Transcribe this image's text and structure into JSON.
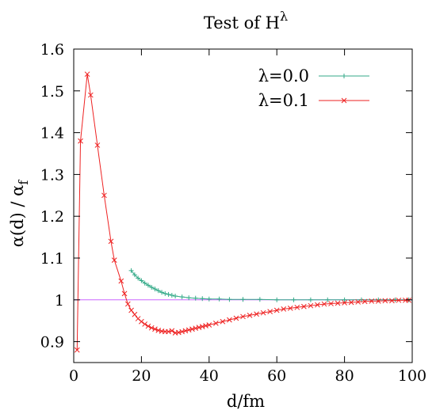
{
  "chart_data": {
    "type": "line",
    "title": "Test of H",
    "title_superscript": "λ",
    "xlabel": "d/fm",
    "ylabel": "α(d) / α",
    "ylabel_subscript": "f",
    "xlim": [
      0,
      100
    ],
    "ylim": [
      0.85,
      1.6
    ],
    "x_ticks": [
      0,
      20,
      40,
      60,
      80,
      100
    ],
    "y_ticks": [
      0.9,
      1,
      1.1,
      1.2,
      1.3,
      1.4,
      1.5,
      1.6
    ],
    "x_tick_labels": [
      "0",
      "20",
      "40",
      "60",
      "80",
      "100"
    ],
    "y_tick_labels": [
      "0.9",
      "1",
      "1.1",
      "1.2",
      "1.3",
      "1.4",
      "1.5",
      "1.6"
    ],
    "grid": false,
    "legend_position": "top-right",
    "reference_line": {
      "y": 1.0,
      "color": "#cc66ff"
    },
    "series": [
      {
        "name": "λ=0.0",
        "color": "#33aa88",
        "marker": "plus",
        "x": [
          17,
          18,
          19,
          20,
          21,
          22,
          23,
          24,
          25,
          26,
          27,
          28,
          29,
          30,
          32,
          34,
          36,
          38,
          40,
          43,
          46,
          50,
          55,
          60,
          65,
          70,
          75,
          80,
          85,
          90,
          95,
          99
        ],
        "y": [
          1.07,
          1.06,
          1.052,
          1.046,
          1.04,
          1.035,
          1.03,
          1.026,
          1.022,
          1.018,
          1.015,
          1.013,
          1.011,
          1.009,
          1.007,
          1.005,
          1.004,
          1.003,
          1.002,
          1.002,
          1.001,
          1.001,
          1.001,
          1.0,
          1.0,
          1.0,
          1.0,
          1.0,
          1.0,
          1.0,
          1.0,
          1.0
        ]
      },
      {
        "name": "λ=0.1",
        "color": "#ee2222",
        "marker": "cross",
        "x": [
          1,
          2,
          4,
          5,
          7,
          9,
          11,
          12,
          14,
          15,
          16,
          17,
          18,
          19,
          20,
          21,
          22,
          23,
          24,
          25,
          26,
          27,
          28,
          29,
          30,
          31,
          32,
          33,
          34,
          35,
          36,
          37,
          38,
          39,
          40,
          42,
          44,
          46,
          48,
          50,
          52,
          54,
          56,
          58,
          60,
          62,
          64,
          66,
          68,
          70,
          72,
          74,
          76,
          78,
          80,
          82,
          84,
          86,
          88,
          90,
          92,
          94,
          96,
          98,
          99
        ],
        "y": [
          0.88,
          1.38,
          1.54,
          1.49,
          1.37,
          1.25,
          1.14,
          1.095,
          1.045,
          1.015,
          0.99,
          0.975,
          0.965,
          0.955,
          0.948,
          0.942,
          0.937,
          0.933,
          0.93,
          0.927,
          0.925,
          0.924,
          0.924,
          0.926,
          0.921,
          0.922,
          0.924,
          0.926,
          0.928,
          0.93,
          0.932,
          0.934,
          0.936,
          0.938,
          0.94,
          0.944,
          0.948,
          0.952,
          0.956,
          0.96,
          0.963,
          0.966,
          0.969,
          0.972,
          0.975,
          0.978,
          0.98,
          0.982,
          0.984,
          0.986,
          0.988,
          0.99,
          0.991,
          0.992,
          0.993,
          0.994,
          0.995,
          0.996,
          0.997,
          0.997,
          0.998,
          0.998,
          0.999,
          0.999,
          0.999
        ]
      }
    ]
  }
}
